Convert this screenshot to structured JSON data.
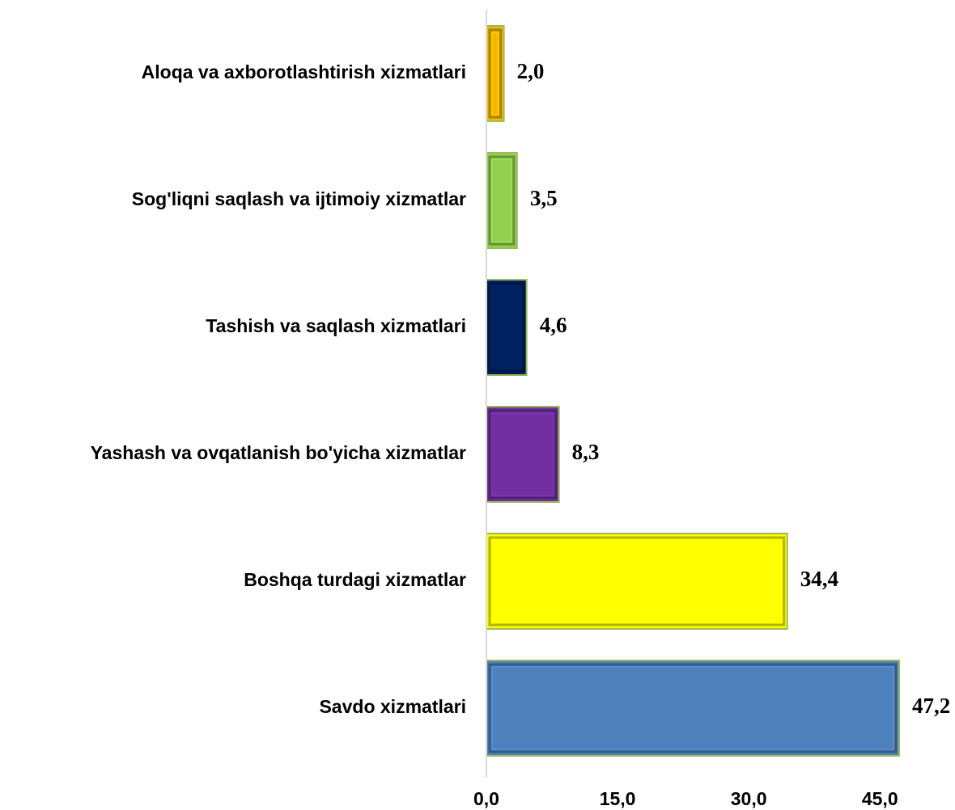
{
  "chart_data": {
    "type": "bar",
    "orientation": "horizontal",
    "categories": [
      "Aloqa va axborotlashtirish xizmatlari",
      "Sog'liqni saqlash va ijtimoiy xizmatlar",
      "Tashish va saqlash xizmatlari",
      "Yashash va ovqatlanish bo'yicha xizmatlar",
      "Boshqa turdagi xizmatlar",
      "Savdo xizmatlari"
    ],
    "values": [
      2.0,
      3.5,
      4.6,
      8.3,
      34.4,
      47.2
    ],
    "data_labels": [
      "2,0",
      "3,5",
      "4,6",
      "8,3",
      "34,4",
      "47,2"
    ],
    "colors": [
      "#f5b800",
      "#92d050",
      "#002060",
      "#7030a0",
      "#ffff00",
      "#4f81bd"
    ],
    "xlim": [
      0,
      47.2
    ],
    "x_ticks": [
      0,
      15,
      30,
      45
    ],
    "x_tick_labels": [
      "0,0",
      "15,0",
      "30,0",
      "45,0"
    ],
    "title": "",
    "xlabel": "",
    "ylabel": "",
    "grid": false,
    "legend": "none"
  }
}
